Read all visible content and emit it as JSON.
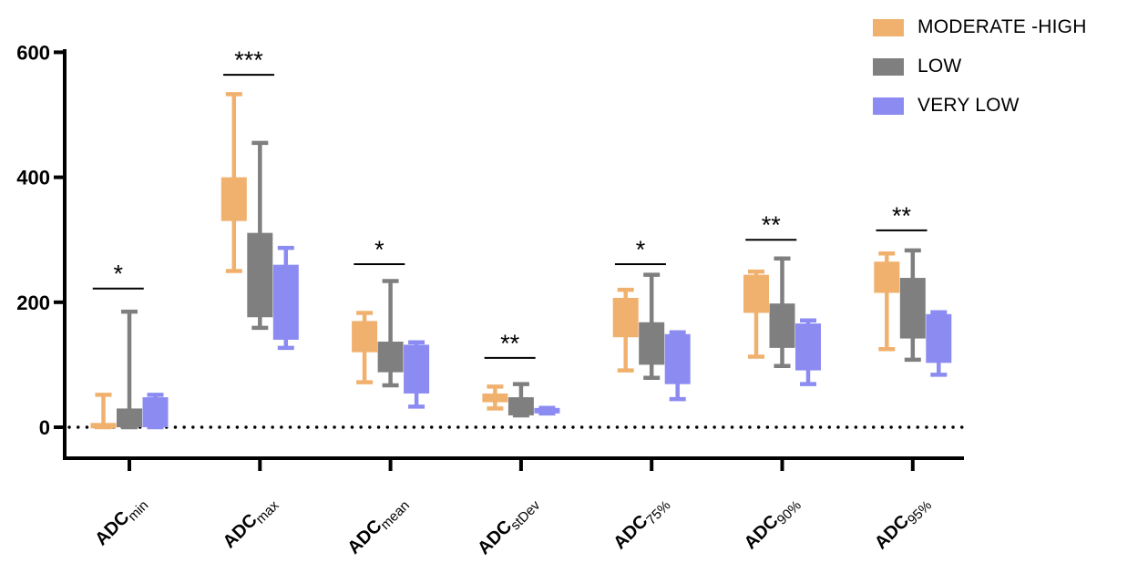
{
  "chart_data": {
    "type": "box",
    "title": "",
    "xlabel": "",
    "ylabel": "",
    "yticks": [
      0,
      200,
      400,
      600
    ],
    "ylim": [
      -50,
      620
    ],
    "grid": false,
    "zero_line_style": "dotted",
    "legend_position": "top-right",
    "box_format": [
      "min",
      "q1",
      "q3",
      "max"
    ],
    "categories": [
      {
        "base": "ADC",
        "sub": "min"
      },
      {
        "base": "ADC",
        "sub": "max"
      },
      {
        "base": "ADC",
        "sub": "mean"
      },
      {
        "base": "ADC",
        "sub": "stDev"
      },
      {
        "base": "ADC",
        "sub": "75%"
      },
      {
        "base": "ADC",
        "sub": "90%"
      },
      {
        "base": "ADC",
        "sub": "95%"
      }
    ],
    "series": [
      {
        "name": "MODERATE -HIGH",
        "color": "#F1B16E",
        "boxes": [
          {
            "min": 0,
            "q1": 0,
            "q3": 5,
            "max": 52
          },
          {
            "min": 250,
            "q1": 330,
            "q3": 400,
            "max": 533
          },
          {
            "min": 72,
            "q1": 120,
            "q3": 170,
            "max": 183
          },
          {
            "min": 30,
            "q1": 40,
            "q3": 54,
            "max": 65
          },
          {
            "min": 91,
            "q1": 144,
            "q3": 207,
            "max": 220
          },
          {
            "min": 113,
            "q1": 183,
            "q3": 244,
            "max": 249
          },
          {
            "min": 125,
            "q1": 215,
            "q3": 265,
            "max": 278
          }
        ]
      },
      {
        "name": "LOW",
        "color": "#7F7F7F",
        "boxes": [
          {
            "min": 0,
            "q1": 0,
            "q3": 30,
            "max": 185
          },
          {
            "min": 159,
            "q1": 176,
            "q3": 311,
            "max": 455
          },
          {
            "min": 67,
            "q1": 88,
            "q3": 137,
            "max": 234
          },
          {
            "min": 19,
            "q1": 19,
            "q3": 48,
            "max": 69
          },
          {
            "min": 79,
            "q1": 100,
            "q3": 168,
            "max": 244
          },
          {
            "min": 98,
            "q1": 127,
            "q3": 198,
            "max": 270
          },
          {
            "min": 108,
            "q1": 142,
            "q3": 239,
            "max": 283
          }
        ]
      },
      {
        "name": "VERY LOW",
        "color": "#8B8BF2",
        "boxes": [
          {
            "min": 0,
            "q1": 0,
            "q3": 48,
            "max": 52
          },
          {
            "min": 127,
            "q1": 140,
            "q3": 260,
            "max": 287
          },
          {
            "min": 33,
            "q1": 54,
            "q3": 132,
            "max": 136
          },
          {
            "min": 22,
            "q1": 23,
            "q3": 30,
            "max": 31
          },
          {
            "min": 45,
            "q1": 69,
            "q3": 149,
            "max": 152
          },
          {
            "min": 69,
            "q1": 91,
            "q3": 166,
            "max": 171
          },
          {
            "min": 84,
            "q1": 103,
            "q3": 181,
            "max": 184
          }
        ]
      }
    ],
    "significance": [
      {
        "category_index": 0,
        "label": "*",
        "between": [
          "MODERATE -HIGH",
          "LOW"
        ],
        "bar_value": 222
      },
      {
        "category_index": 1,
        "label": "***",
        "between": [
          "MODERATE -HIGH",
          "LOW"
        ],
        "bar_value": 564
      },
      {
        "category_index": 2,
        "label": "*",
        "between": [
          "MODERATE -HIGH",
          "LOW"
        ],
        "bar_value": 261
      },
      {
        "category_index": 3,
        "label": "**",
        "between": [
          "MODERATE -HIGH",
          "LOW"
        ],
        "bar_value": 111
      },
      {
        "category_index": 4,
        "label": "*",
        "between": [
          "MODERATE -HIGH",
          "LOW"
        ],
        "bar_value": 261
      },
      {
        "category_index": 5,
        "label": "**",
        "between": [
          "MODERATE -HIGH",
          "LOW"
        ],
        "bar_value": 300
      },
      {
        "category_index": 6,
        "label": "**",
        "between": [
          "MODERATE -HIGH",
          "LOW"
        ],
        "bar_value": 315
      }
    ]
  },
  "legend": {
    "items": [
      {
        "label": "MODERATE -HIGH",
        "color": "#F1B16E"
      },
      {
        "label": "LOW",
        "color": "#7F7F7F"
      },
      {
        "label": "VERY LOW",
        "color": "#8B8BF2"
      }
    ]
  },
  "colors": {
    "axis": "#000000",
    "background": "#FFFFFF"
  }
}
